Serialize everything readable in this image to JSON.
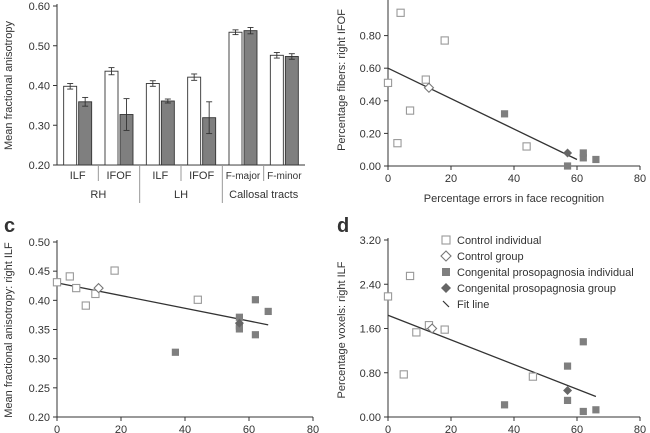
{
  "panels": {
    "c": "c",
    "d": "d"
  },
  "colors": {
    "control": "#ffffff",
    "control_stroke": "#999999",
    "cp_individual": "#7f7f7f",
    "cp_group": "#666666",
    "axis": "#333333",
    "line": "#333333"
  },
  "legend": {
    "items": [
      {
        "label": "Control individual",
        "marker": "open-square"
      },
      {
        "label": "Control group",
        "marker": "open-diamond"
      },
      {
        "label": "Congenital prosopagnosia individual",
        "marker": "filled-square"
      },
      {
        "label": "Congenital prosopagnosia group",
        "marker": "filled-diamond"
      },
      {
        "label": "Fit line",
        "marker": "slash"
      }
    ]
  },
  "chart_data": [
    {
      "id": "a",
      "type": "bar",
      "title": "",
      "xlabel": "",
      "ylabel": "Mean fractional anisotropy",
      "ylim": [
        0.2,
        0.6
      ],
      "yticks": [
        "0.20",
        "0.30",
        "0.40",
        "0.50",
        "0.60"
      ],
      "categories": [
        "ILF",
        "IFOF",
        "ILF",
        "IFOF",
        "F-major",
        "F-minor"
      ],
      "groups": [
        {
          "label": "RH",
          "span": [
            0,
            1
          ]
        },
        {
          "label": "LH",
          "span": [
            2,
            3
          ]
        },
        {
          "label": "Callosal tracts",
          "span": [
            4,
            5
          ]
        }
      ],
      "series": [
        {
          "values": [
            0.398,
            0.436,
            0.405,
            0.421,
            0.534,
            0.476
          ],
          "errors": [
            0.007,
            0.009,
            0.007,
            0.008,
            0.006,
            0.007
          ],
          "color": "#ffffff"
        },
        {
          "values": [
            0.359,
            0.327,
            0.361,
            0.319,
            0.538,
            0.473
          ],
          "errors": [
            0.011,
            0.04,
            0.005,
            0.04,
            0.008,
            0.007
          ],
          "color": "#7f7f7f"
        }
      ]
    },
    {
      "id": "b",
      "type": "scatter",
      "title": "",
      "xlabel": "Percentage errors in face recognition",
      "ylabel": "Percentage fibers: right IFOF",
      "xlim": [
        0,
        80
      ],
      "ylim": [
        0.0,
        1.0
      ],
      "xticks": [
        "0",
        "20",
        "40",
        "60",
        "80"
      ],
      "yticks": [
        "0.00",
        "0.20",
        "0.40",
        "0.60",
        "0.80"
      ],
      "control_individual": [
        [
          0,
          0.51
        ],
        [
          3,
          0.14
        ],
        [
          4,
          0.94
        ],
        [
          7,
          0.34
        ],
        [
          12,
          0.53
        ],
        [
          18,
          0.77
        ],
        [
          44,
          0.12
        ]
      ],
      "control_group": [
        [
          13,
          0.48
        ]
      ],
      "cp_individual": [
        [
          37,
          0.32
        ],
        [
          57,
          0.0
        ],
        [
          62,
          0.05
        ],
        [
          62,
          0.08
        ],
        [
          66,
          0.04
        ]
      ],
      "cp_group": [
        [
          57,
          0.08
        ]
      ],
      "fit_line": [
        [
          0,
          0.6
        ],
        [
          60,
          0.04
        ]
      ]
    },
    {
      "id": "c",
      "type": "scatter",
      "title": "",
      "xlabel": "",
      "ylabel": "Mean fractional anisotropy: right ILF",
      "xlim": [
        0,
        80
      ],
      "ylim": [
        0.2,
        0.5
      ],
      "xticks": [
        "0",
        "20",
        "40",
        "60",
        "80"
      ],
      "yticks": [
        "0.20",
        "0.25",
        "0.30",
        "0.35",
        "0.40",
        "0.45",
        "0.50"
      ],
      "control_individual": [
        [
          0,
          0.431
        ],
        [
          4,
          0.441
        ],
        [
          6,
          0.421
        ],
        [
          9,
          0.391
        ],
        [
          12,
          0.411
        ],
        [
          18,
          0.451
        ],
        [
          44,
          0.401
        ]
      ],
      "control_group": [
        [
          13,
          0.421
        ]
      ],
      "cp_individual": [
        [
          37,
          0.311
        ],
        [
          57,
          0.371
        ],
        [
          57,
          0.356
        ],
        [
          57,
          0.351
        ],
        [
          62,
          0.401
        ],
        [
          62,
          0.341
        ],
        [
          66,
          0.381
        ]
      ],
      "cp_group": [
        [
          57,
          0.361
        ]
      ],
      "fit_line": [
        [
          0,
          0.43
        ],
        [
          66,
          0.358
        ]
      ]
    },
    {
      "id": "d",
      "type": "scatter",
      "title": "",
      "xlabel": "",
      "ylabel": "Percentage voxels: right ILF",
      "xlim": [
        0,
        80
      ],
      "ylim": [
        0.0,
        3.2
      ],
      "xticks": [
        "0",
        "20",
        "40",
        "60",
        "80"
      ],
      "yticks": [
        "0.00",
        "0.80",
        "1.60",
        "2.40",
        "3.20"
      ],
      "control_individual": [
        [
          0,
          2.18
        ],
        [
          5,
          0.77
        ],
        [
          7,
          2.55
        ],
        [
          9,
          1.53
        ],
        [
          13,
          1.66
        ],
        [
          18,
          1.58
        ],
        [
          46,
          0.73
        ]
      ],
      "control_group": [
        [
          14,
          1.6
        ]
      ],
      "cp_individual": [
        [
          37,
          0.22
        ],
        [
          57,
          0.92
        ],
        [
          57,
          0.3
        ],
        [
          62,
          1.36
        ],
        [
          62,
          0.1
        ],
        [
          66,
          0.13
        ]
      ],
      "cp_group": [
        [
          57,
          0.48
        ]
      ],
      "fit_line": [
        [
          0,
          1.84
        ],
        [
          66,
          0.37
        ]
      ]
    }
  ]
}
